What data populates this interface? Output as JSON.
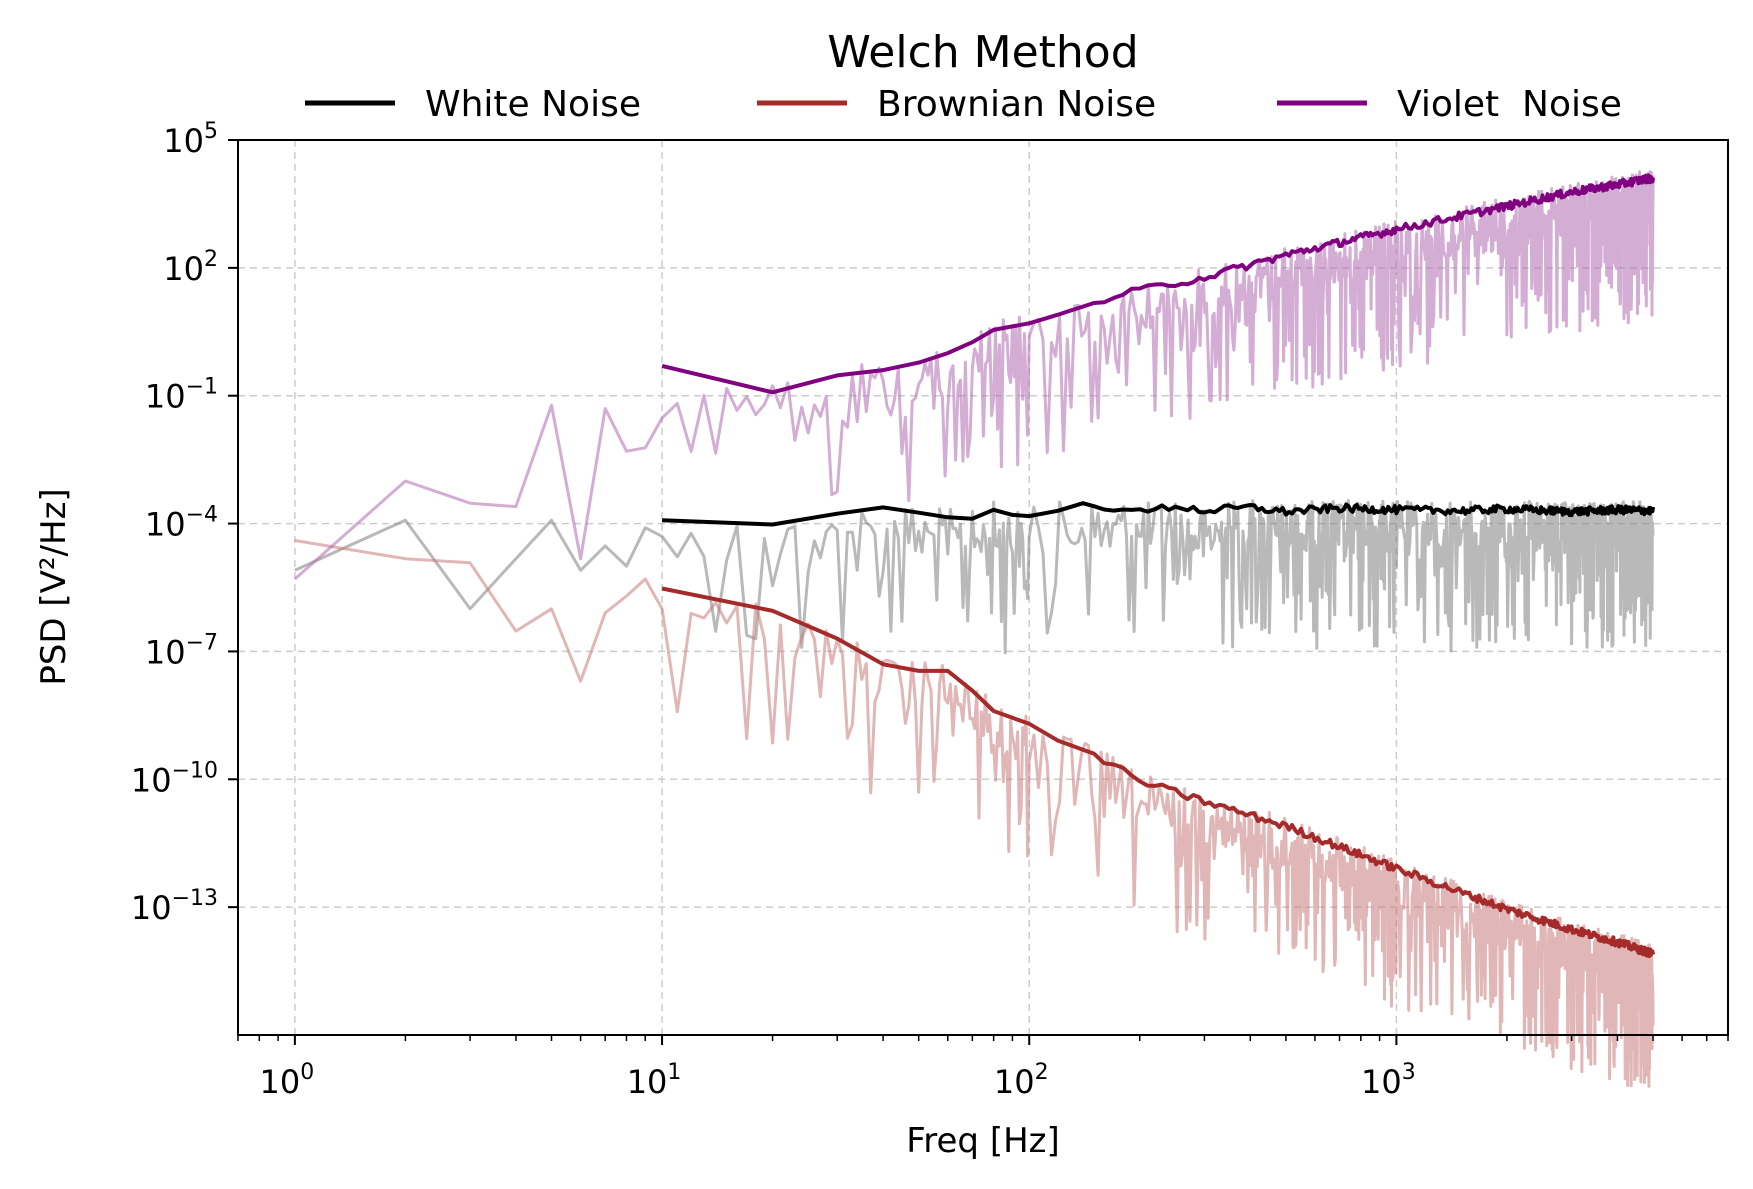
{
  "chart_data": {
    "type": "line",
    "title": "Welch Method",
    "xlabel": "Freq [Hz]",
    "ylabel": "PSD [V²/Hz]",
    "xscale": "log",
    "yscale": "log",
    "xlim": [
      0.7,
      8000
    ],
    "ylim": [
      1e-16,
      100000.0
    ],
    "x_ticks": [
      {
        "base": "10",
        "exp": "0",
        "value": 1
      },
      {
        "base": "10",
        "exp": "1",
        "value": 10
      },
      {
        "base": "10",
        "exp": "2",
        "value": 100
      },
      {
        "base": "10",
        "exp": "3",
        "value": 1000
      }
    ],
    "y_ticks": [
      {
        "base": "10",
        "exp": "5",
        "value": 5
      },
      {
        "base": "10",
        "exp": "2",
        "value": 2
      },
      {
        "base": "10",
        "exp": "−1",
        "value": -1
      },
      {
        "base": "10",
        "exp": "−4",
        "value": -4
      },
      {
        "base": "10",
        "exp": "−7",
        "value": -7
      },
      {
        "base": "10",
        "exp": "−10",
        "value": -10
      },
      {
        "base": "10",
        "exp": "−13",
        "value": -13
      }
    ],
    "grid": true,
    "legend_position": "top",
    "series": [
      {
        "name": "White Noise",
        "color": "#000000",
        "kind": "welch",
        "x": [
          10,
          20,
          30,
          40,
          50,
          60,
          70,
          80,
          90,
          100,
          120,
          140,
          160,
          180,
          200,
          250,
          300,
          400,
          500,
          700,
          1000,
          1500,
          2000,
          3000,
          4000,
          5000
        ],
        "y": [
          0.00012,
          9.5e-05,
          0.00017,
          0.00024,
          0.00018,
          0.00014,
          0.00013,
          0.00021,
          0.00016,
          0.00015,
          0.0002,
          0.0003,
          0.00022,
          0.00025,
          0.00018,
          0.00026,
          0.0002,
          0.00024,
          0.00019,
          0.00023,
          0.00021,
          0.0002,
          0.00022,
          0.00019,
          0.00021,
          0.0002
        ]
      },
      {
        "name": "Brownian Noise",
        "color": "#a52a2a",
        "kind": "welch",
        "x": [
          10,
          20,
          30,
          40,
          50,
          60,
          70,
          80,
          100,
          120,
          150,
          200,
          300,
          500,
          1000,
          2000,
          3000,
          4000,
          5000
        ],
        "y": [
          3e-06,
          9e-07,
          2e-07,
          5e-08,
          3.5e-08,
          3.5e-08,
          1.2e-08,
          4e-09,
          2e-09,
          8e-10,
          4e-10,
          9e-11,
          3e-11,
          8e-12,
          8e-13,
          9e-14,
          3e-14,
          1.5e-14,
          8e-15
        ]
      },
      {
        "name": "Violet  Noise",
        "color": "#800080",
        "kind": "welch",
        "x": [
          10,
          20,
          30,
          40,
          50,
          60,
          70,
          80,
          100,
          120,
          150,
          200,
          300,
          500,
          1000,
          2000,
          3000,
          4000,
          5000
        ],
        "y": [
          0.5,
          0.12,
          0.3,
          0.4,
          0.6,
          1.0,
          1.8,
          3.5,
          5,
          8,
          15,
          30,
          60,
          200,
          800,
          2800,
          6000,
          9000,
          13000
        ]
      },
      {
        "name": "",
        "color": "#808080",
        "kind": "periodogram-white",
        "x": [
          1,
          2,
          3,
          4,
          5,
          6,
          7,
          8,
          9,
          10
        ],
        "y": [
          8e-06,
          0.00012,
          1e-06,
          1.5e-05,
          0.00012,
          8e-06,
          3e-05,
          1e-05,
          8e-05,
          5e-05
        ]
      },
      {
        "name": "",
        "color": "#c97a7a",
        "kind": "periodogram-brown",
        "x": [
          1,
          2,
          3,
          4,
          5,
          6,
          7,
          8,
          9,
          10
        ],
        "y": [
          4e-05,
          1.5e-05,
          1.2e-05,
          3e-07,
          1e-06,
          2e-08,
          8e-07,
          2e-06,
          5e-06,
          1e-06
        ]
      },
      {
        "name": "",
        "color": "#b06ab0",
        "kind": "periodogram-violet",
        "x": [
          1,
          2,
          3,
          4,
          5,
          6,
          7,
          8,
          9,
          10
        ],
        "y": [
          5e-06,
          0.001,
          0.0003,
          0.00025,
          0.06,
          1.5e-05,
          0.05,
          0.005,
          0.006,
          0.03
        ]
      }
    ]
  }
}
